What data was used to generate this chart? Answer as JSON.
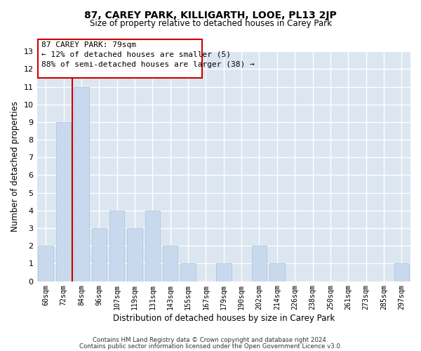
{
  "title": "87, CAREY PARK, KILLIGARTH, LOOE, PL13 2JP",
  "subtitle": "Size of property relative to detached houses in Carey Park",
  "xlabel": "Distribution of detached houses by size in Carey Park",
  "ylabel": "Number of detached properties",
  "footer_line1": "Contains HM Land Registry data © Crown copyright and database right 2024.",
  "footer_line2": "Contains public sector information licensed under the Open Government Licence v3.0.",
  "categories": [
    "60sqm",
    "72sqm",
    "84sqm",
    "96sqm",
    "107sqm",
    "119sqm",
    "131sqm",
    "143sqm",
    "155sqm",
    "167sqm",
    "179sqm",
    "190sqm",
    "202sqm",
    "214sqm",
    "226sqm",
    "238sqm",
    "250sqm",
    "261sqm",
    "273sqm",
    "285sqm",
    "297sqm"
  ],
  "values": [
    2,
    9,
    11,
    3,
    4,
    3,
    4,
    2,
    1,
    0,
    1,
    0,
    2,
    1,
    0,
    0,
    0,
    0,
    0,
    0,
    1
  ],
  "bar_color": "#c9d9ed",
  "bar_edge_color": "#a8c0dc",
  "subject_line_index": 2,
  "subject_line_color": "#cc0000",
  "ylim": [
    0,
    13
  ],
  "yticks": [
    0,
    1,
    2,
    3,
    4,
    5,
    6,
    7,
    8,
    9,
    10,
    11,
    12,
    13
  ],
  "annotation_text_line1": "87 CAREY PARK: 79sqm",
  "annotation_text_line2": "← 12% of detached houses are smaller (5)",
  "annotation_text_line3": "88% of semi-detached houses are larger (38) →",
  "grid_color": "#ffffff",
  "bg_color": "#dce6f0"
}
